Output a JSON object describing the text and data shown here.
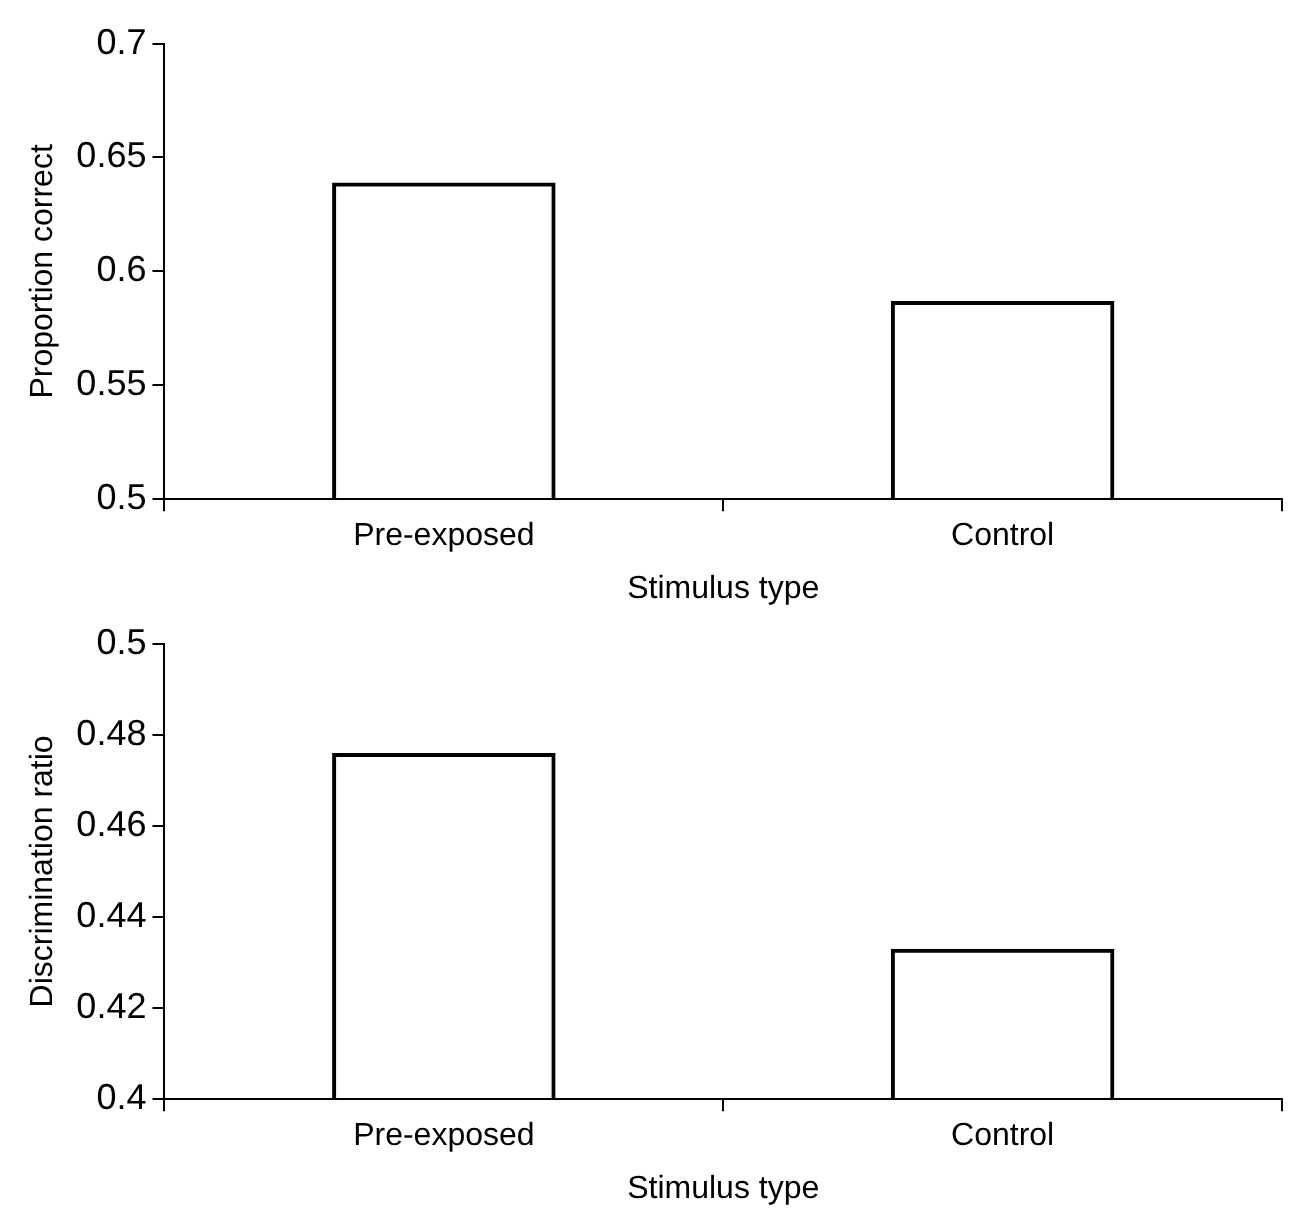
{
  "chart_data": [
    {
      "type": "bar",
      "categories": [
        "Pre-exposed",
        "Control"
      ],
      "values": [
        0.639,
        0.587
      ],
      "color": "#000000",
      "xlabel": "Stimulus type",
      "ylabel": "Proportion correct",
      "ylim": [
        0.5,
        0.7
      ],
      "yticks": [
        0.5,
        0.55,
        0.6,
        0.65,
        0.7
      ],
      "grid": false,
      "legend": false
    },
    {
      "type": "bar",
      "categories": [
        "Pre-exposed",
        "Control"
      ],
      "values": [
        0.476,
        0.433
      ],
      "color": "#000000",
      "xlabel": "Stimulus type",
      "ylabel": "Discrimination ratio",
      "ylim": [
        0.4,
        0.5
      ],
      "yticks": [
        0.4,
        0.42,
        0.44,
        0.46,
        0.48,
        0.5
      ],
      "grid": false,
      "legend": false
    }
  ]
}
